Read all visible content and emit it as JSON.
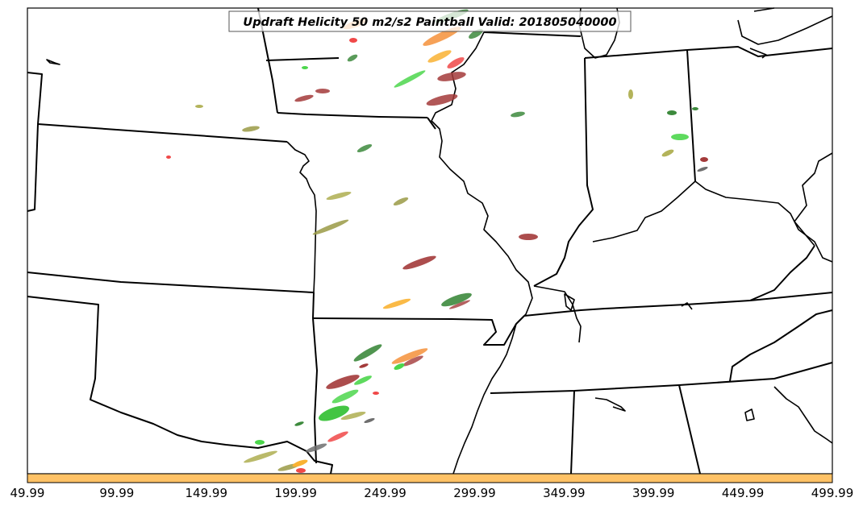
{
  "title": "Updraft Helicity 50 m2/s2 Paintball Valid: 201805040000",
  "colorbar": {
    "fill_color": "#ffc266",
    "tick_labels": [
      "49.99",
      "99.99",
      "149.99",
      "199.99",
      "249.99",
      "299.99",
      "349.99",
      "399.99",
      "449.99",
      "499.99"
    ]
  },
  "paintball_colors": {
    "dark_red": "#a33a3a",
    "red": "#f04848",
    "orange": "#f5913a",
    "light_orange": "#f9b233",
    "light_green": "#4cd64c",
    "green": "#2fbf2f",
    "dark_green": "#3d8a3d",
    "olive": "#9a9a45",
    "khaki": "#b3b35a",
    "grey": "#6e6e6e"
  }
}
